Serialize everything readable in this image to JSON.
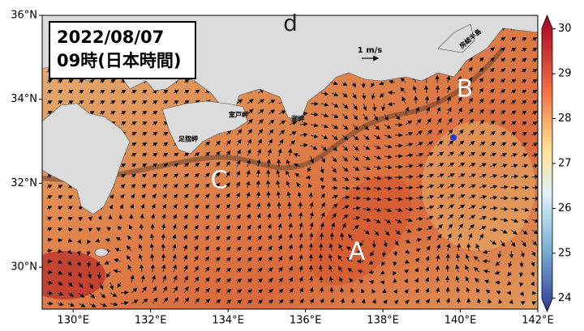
{
  "map": {
    "panel_label": "d",
    "date": "2022/08/07",
    "time": "09時(日本時間)",
    "scale_label": "1 m/s",
    "feature_labels": [
      "A",
      "B",
      "C"
    ],
    "place_labels": [
      "室戸岬",
      "潮岬",
      "足摺岬",
      "房総半島"
    ],
    "xlim": [
      129.2,
      142
    ],
    "ylim": [
      29,
      36
    ],
    "xticks": [
      {
        "value": 130,
        "label": "130°E"
      },
      {
        "value": 132,
        "label": "132°E"
      },
      {
        "value": 134,
        "label": "134°E"
      },
      {
        "value": 136,
        "label": "136°E"
      },
      {
        "value": 138,
        "label": "138°E"
      },
      {
        "value": 140,
        "label": "140°E"
      },
      {
        "value": 142,
        "label": "142°E"
      }
    ],
    "yticks": [
      {
        "value": 30,
        "label": "30°N"
      },
      {
        "value": 32,
        "label": "32°N"
      },
      {
        "value": 34,
        "label": "34°N"
      },
      {
        "value": 36,
        "label": "36°N"
      }
    ],
    "colorbar": {
      "lim": [
        23.7,
        30.3
      ],
      "ticks": [
        24,
        25,
        26,
        27,
        28,
        29,
        30
      ]
    }
  }
}
